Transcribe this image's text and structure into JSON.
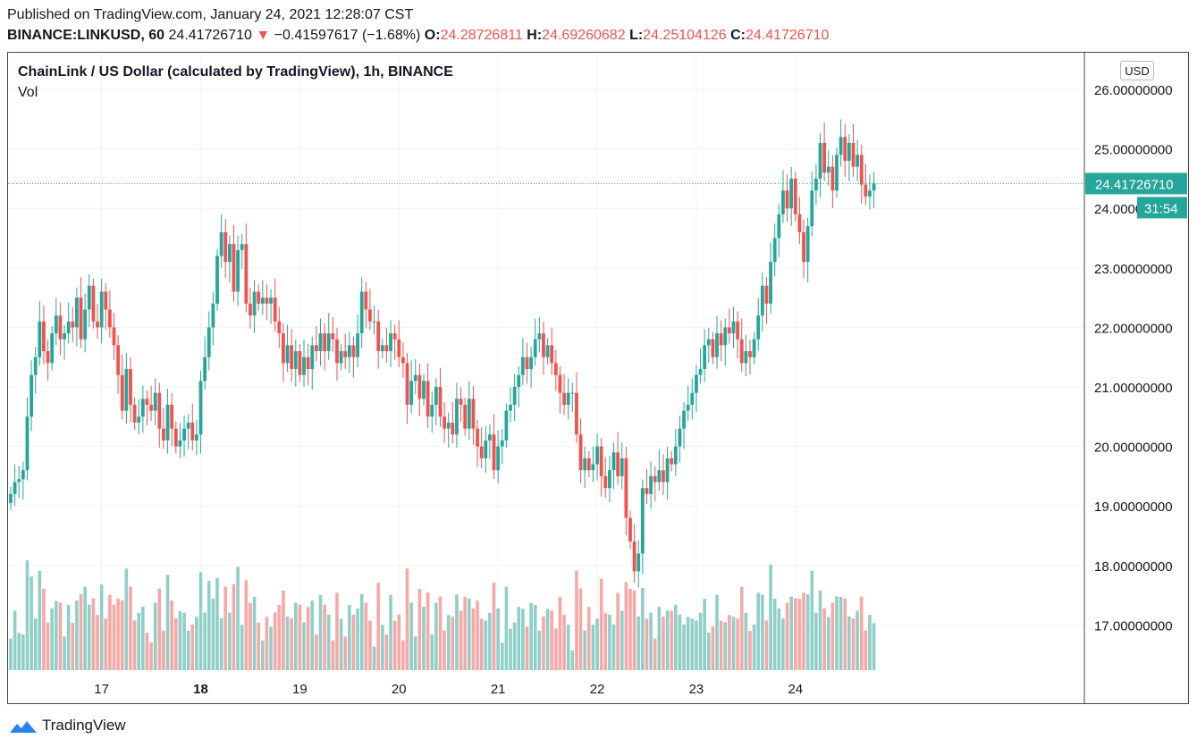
{
  "header": {
    "published": "Published on TradingView.com, January 24, 2021 12:28:07 CST",
    "symbol": "BINANCE:LINKUSD, 60",
    "last": "24.41726710",
    "change_arrow": "▼",
    "change": "−0.41597617 (−1.68%)",
    "open_label": "O:",
    "open": "24.28726811",
    "high_label": "H:",
    "high": "24.69260682",
    "low_label": "L:",
    "low": "24.25104126",
    "close_label": "C:",
    "close": "24.41726710"
  },
  "chart_title": "ChainLink / US Dollar (calculated by TradingView), 1h, BINANCE",
  "volume_label": "Vol",
  "currency_badge": "USD",
  "price_tag": {
    "value": "24.41726710",
    "countdown": "31:54"
  },
  "brand": {
    "name": "TradingView",
    "logo_icon": "tradingview-logo-icon"
  },
  "colors": {
    "up": "#26a69a",
    "down": "#ef5350",
    "up_vol": "#8fcfc7",
    "down_vol": "#f5a8a6",
    "grid": "#f0f3fa"
  },
  "chart_data": {
    "type": "candlestick",
    "interval": "1h",
    "ylim": [
      16.2,
      26.5
    ],
    "y_ticks": [
      "26.00000000",
      "25.00000000",
      "24.00000000",
      "23.00000000",
      "22.00000000",
      "21.00000000",
      "20.00000000",
      "19.00000000",
      "18.00000000",
      "17.00000000"
    ],
    "y_tick_values": [
      26,
      25,
      24,
      23,
      22,
      21,
      20,
      19,
      18,
      17
    ],
    "x_ticks": [
      {
        "label": "17",
        "index": 22
      },
      {
        "label": "18",
        "index": 46
      },
      {
        "label": "19",
        "index": 70
      },
      {
        "label": "20",
        "index": 94
      },
      {
        "label": "21",
        "index": 118
      },
      {
        "label": "22",
        "index": 142
      },
      {
        "label": "23",
        "index": 166
      },
      {
        "label": "24",
        "index": 190
      }
    ],
    "current_price": 24.4172671,
    "closes": [
      19.2,
      19.4,
      19.45,
      19.6,
      20.5,
      21.2,
      21.5,
      22.1,
      21.6,
      21.4,
      21.9,
      22.2,
      21.8,
      21.9,
      22.1,
      22.0,
      22.5,
      21.8,
      22.3,
      22.7,
      22.1,
      22.0,
      22.6,
      22.3,
      22.0,
      21.7,
      21.2,
      20.6,
      21.3,
      20.7,
      20.4,
      20.5,
      20.8,
      20.7,
      20.6,
      20.9,
      20.3,
      20.1,
      20.7,
      20.3,
      20.0,
      20.1,
      20.3,
      20.4,
      20.1,
      20.2,
      21.1,
      21.5,
      22.0,
      22.4,
      23.2,
      23.6,
      23.1,
      23.4,
      22.6,
      23.3,
      23.4,
      22.4,
      22.2,
      22.6,
      22.4,
      22.5,
      22.4,
      22.5,
      22.1,
      21.9,
      21.4,
      21.7,
      21.3,
      21.6,
      21.2,
      21.5,
      21.3,
      21.7,
      21.6,
      21.9,
      21.6,
      21.9,
      21.8,
      21.4,
      21.6,
      21.5,
      21.7,
      21.5,
      21.9,
      22.6,
      22.3,
      22.1,
      22.1,
      21.6,
      21.7,
      21.6,
      21.9,
      21.8,
      21.5,
      21.4,
      20.7,
      21.1,
      21.2,
      20.8,
      21.1,
      20.5,
      20.7,
      21.0,
      20.5,
      20.3,
      20.4,
      20.2,
      20.8,
      20.7,
      20.3,
      20.8,
      20.3,
      20.0,
      19.8,
      20.1,
      20.2,
      19.6,
      20.0,
      20.1,
      20.6,
      20.7,
      21.0,
      21.2,
      21.5,
      21.3,
      21.5,
      21.8,
      21.9,
      21.5,
      21.7,
      21.4,
      21.2,
      20.9,
      20.7,
      20.9,
      20.9,
      20.2,
      19.6,
      19.8,
      19.6,
      19.7,
      20.0,
      19.5,
      19.3,
      19.6,
      19.9,
      19.5,
      19.8,
      18.8,
      18.4,
      17.9,
      18.2,
      19.3,
      19.2,
      19.5,
      19.4,
      19.6,
      19.4,
      19.8,
      19.7,
      20.0,
      20.3,
      20.6,
      20.7,
      20.9,
      21.2,
      21.3,
      21.7,
      21.8,
      21.5,
      21.9,
      21.7,
      22.0,
      21.9,
      22.1,
      21.8,
      21.4,
      21.6,
      21.5,
      21.8,
      22.2,
      22.7,
      22.4,
      23.1,
      23.5,
      23.9,
      24.3,
      24.0,
      24.5,
      23.9,
      23.6,
      23.1,
      23.7,
      24.3,
      24.5,
      25.1,
      24.6,
      24.7,
      24.3,
      24.9,
      25.2,
      24.8,
      25.1,
      24.7,
      24.9,
      24.4,
      24.2,
      24.3,
      24.42
    ]
  }
}
